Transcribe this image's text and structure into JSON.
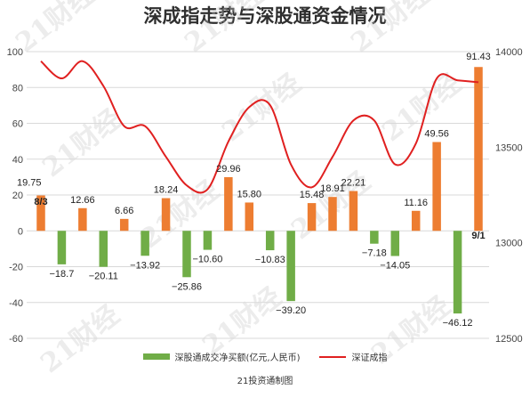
{
  "title": "深成指走势与深股通资金情况",
  "credit": "21投资通制图",
  "watermark_text": "21财经",
  "chart_data": {
    "type": "bar",
    "title": "深成指走势与深股通资金情况",
    "left_axis": {
      "ticks": [
        100,
        80,
        60,
        40,
        20,
        0,
        -20,
        -40,
        -60
      ],
      "range": [
        -60,
        100
      ]
    },
    "right_axis": {
      "ticks": [
        14000,
        13500,
        13000,
        12500
      ],
      "range": [
        12500,
        14000
      ]
    },
    "categories_shown": {
      "start": "8/3",
      "end": "9/1"
    },
    "series": [
      {
        "name": "深股通成交净买额(亿元,人民币)",
        "type": "bar",
        "axis": "left",
        "values": [
          19.75,
          -18.7,
          12.66,
          -20.11,
          6.66,
          -13.92,
          18.24,
          -25.86,
          -10.6,
          29.96,
          15.8,
          -10.83,
          -39.2,
          15.48,
          18.91,
          22.21,
          -7.18,
          -14.05,
          11.16,
          49.56,
          -46.12,
          91.43
        ],
        "labels": [
          "19.75",
          "−18.7",
          "12.66",
          "−20.11",
          "6.66",
          "−13.92",
          "18.24",
          "−25.86",
          "−10.60",
          "29.96",
          "15.80",
          "−10.83",
          "−39.20",
          "15.48",
          "18.91",
          "22.21",
          "−7.18",
          "−14.05",
          "11.16",
          "49.56",
          "−46.12",
          "91.43"
        ]
      },
      {
        "name": "深证成指",
        "type": "line",
        "axis": "right",
        "values": [
          13950,
          13860,
          13950,
          13820,
          13610,
          13610,
          13450,
          13300,
          13280,
          13530,
          13710,
          13720,
          13410,
          13290,
          13450,
          13640,
          13640,
          13410,
          13520,
          13860,
          13850,
          13840
        ]
      }
    ],
    "colors": {
      "positive_bar": "#ed7d31",
      "negative_bar": "#70ad47",
      "line": "#e02020",
      "grid": "#d9d9d9"
    }
  },
  "legend": {
    "bar_label": "深股通成交净买额(亿元,人民币)",
    "line_label": "深证成指"
  }
}
